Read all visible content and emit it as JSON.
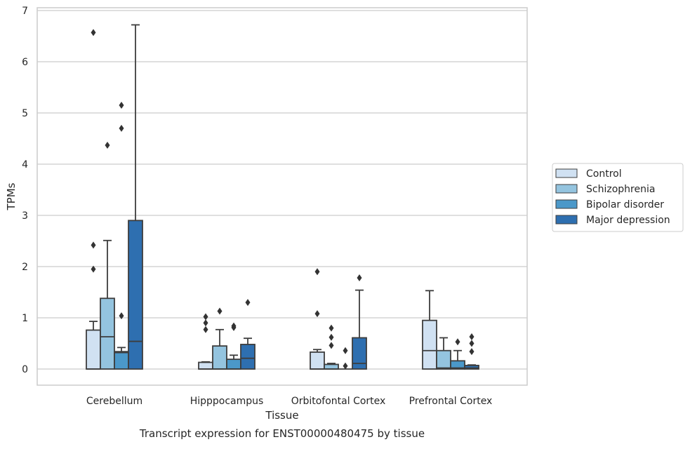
{
  "chart_data": {
    "type": "box",
    "title": "",
    "caption": "Transcript expression for ENST00000480475 by tissue",
    "xlabel": "Tissue",
    "ylabel": "TPMs",
    "ylim": [
      -0.32,
      7.05
    ],
    "yticks": [
      0,
      1,
      2,
      3,
      4,
      5,
      6,
      7
    ],
    "grid": "horizontal",
    "legend_position": "right",
    "categories": [
      "Cerebellum",
      "Hipppocampus",
      "Orbitofontal Cortex",
      "Prefrontal Cortex"
    ],
    "series": [
      {
        "name": "Control",
        "color": "#d0e1f2",
        "boxes": [
          {
            "q1": 0.0,
            "median": 0.0,
            "q3": 0.76,
            "whisker_low": 0.0,
            "whisker_high": 0.93,
            "outliers": [
              1.95,
              2.42,
              6.57
            ]
          },
          {
            "q1": 0.0,
            "median": 0.0,
            "q3": 0.13,
            "whisker_low": 0.0,
            "whisker_high": 0.14,
            "outliers": [
              0.77,
              0.9,
              1.02
            ]
          },
          {
            "q1": 0.0,
            "median": 0.0,
            "q3": 0.33,
            "whisker_low": 0.0,
            "whisker_high": 0.38,
            "outliers": [
              1.08,
              1.9
            ]
          },
          {
            "q1": 0.0,
            "median": 0.36,
            "q3": 0.95,
            "whisker_low": 0.0,
            "whisker_high": 1.53,
            "outliers": []
          }
        ]
      },
      {
        "name": "Schizophrenia",
        "color": "#94c4df",
        "boxes": [
          {
            "q1": 0.0,
            "median": 0.63,
            "q3": 1.38,
            "whisker_low": 0.0,
            "whisker_high": 2.51,
            "outliers": [
              4.37
            ]
          },
          {
            "q1": 0.0,
            "median": 0.0,
            "q3": 0.45,
            "whisker_low": 0.0,
            "whisker_high": 0.77,
            "outliers": [
              1.13
            ]
          },
          {
            "q1": 0.0,
            "median": 0.0,
            "q3": 0.09,
            "whisker_low": 0.0,
            "whisker_high": 0.11,
            "outliers": [
              0.46,
              0.62,
              0.8
            ]
          },
          {
            "q1": 0.0,
            "median": 0.02,
            "q3": 0.36,
            "whisker_low": 0.0,
            "whisker_high": 0.61,
            "outliers": []
          }
        ]
      },
      {
        "name": "Bipolar disorder",
        "color": "#4b98c9",
        "boxes": [
          {
            "q1": 0.0,
            "median": 0.32,
            "q3": 0.34,
            "whisker_low": 0.0,
            "whisker_high": 0.42,
            "outliers": [
              1.04,
              4.7,
              5.15
            ]
          },
          {
            "q1": 0.0,
            "median": 0.0,
            "q3": 0.19,
            "whisker_low": 0.0,
            "whisker_high": 0.27,
            "outliers": [
              0.81,
              0.84
            ]
          },
          {
            "q1": 0.0,
            "median": 0.0,
            "q3": 0.0,
            "whisker_low": 0.0,
            "whisker_high": 0.0,
            "outliers": [
              0.06,
              0.36
            ]
          },
          {
            "q1": 0.0,
            "median": 0.02,
            "q3": 0.16,
            "whisker_low": 0.0,
            "whisker_high": 0.36,
            "outliers": [
              0.53
            ]
          }
        ]
      },
      {
        "name": "Major depression",
        "color": "#2e6fb0",
        "boxes": [
          {
            "q1": 0.0,
            "median": 0.54,
            "q3": 2.9,
            "whisker_low": 0.0,
            "whisker_high": 6.72,
            "outliers": []
          },
          {
            "q1": 0.0,
            "median": 0.21,
            "q3": 0.48,
            "whisker_low": 0.0,
            "whisker_high": 0.6,
            "outliers": [
              1.3
            ]
          },
          {
            "q1": 0.0,
            "median": 0.11,
            "q3": 0.61,
            "whisker_low": 0.0,
            "whisker_high": 1.54,
            "outliers": [
              1.78
            ]
          },
          {
            "q1": 0.0,
            "median": 0.02,
            "q3": 0.07,
            "whisker_low": 0.0,
            "whisker_high": 0.08,
            "outliers": [
              0.34,
              0.5,
              0.63
            ]
          }
        ]
      }
    ]
  }
}
